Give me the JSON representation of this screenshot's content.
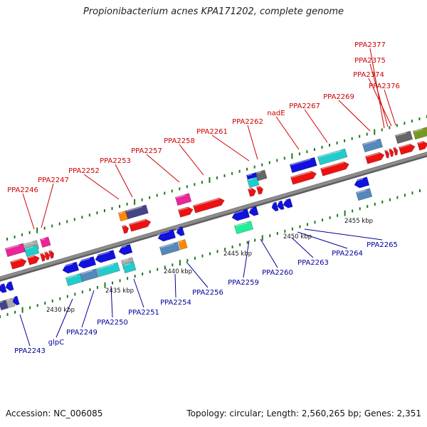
{
  "title": "Propionibacterium acnes KPA171202, complete genome",
  "footer": {
    "accession": "Accession: NC_006085",
    "summary": "Topology: circular; Length: 2,560,265 bp; Genes: 2,351"
  },
  "colors": {
    "forward_label": "#cc0000",
    "reverse_label": "#000099",
    "backbone": "#8c8c8c",
    "tick": "#1a7a1a"
  },
  "scale_labels": [
    "2430 kbp",
    "2435 kbp",
    "2440 kbp",
    "2445 kbp",
    "2450 kbp",
    "2455 kbp"
  ],
  "forward_genes": [
    "PPA2246",
    "PPA2247",
    "PPA2252",
    "PPA2253",
    "PPA2257",
    "PPA2258",
    "PPA2261",
    "PPA2262",
    "nadE",
    "PPA2267",
    "PPA2269",
    "PPA2377",
    "PPA2375",
    "PPA2374",
    "PPA2376"
  ],
  "reverse_genes": [
    "PPA2243",
    "glpC",
    "PPA2249",
    "PPA2250",
    "PPA2251",
    "PPA2254",
    "PPA2256",
    "PPA2259",
    "PPA2260",
    "PPA2263",
    "PPA2264",
    "PPA2265"
  ]
}
